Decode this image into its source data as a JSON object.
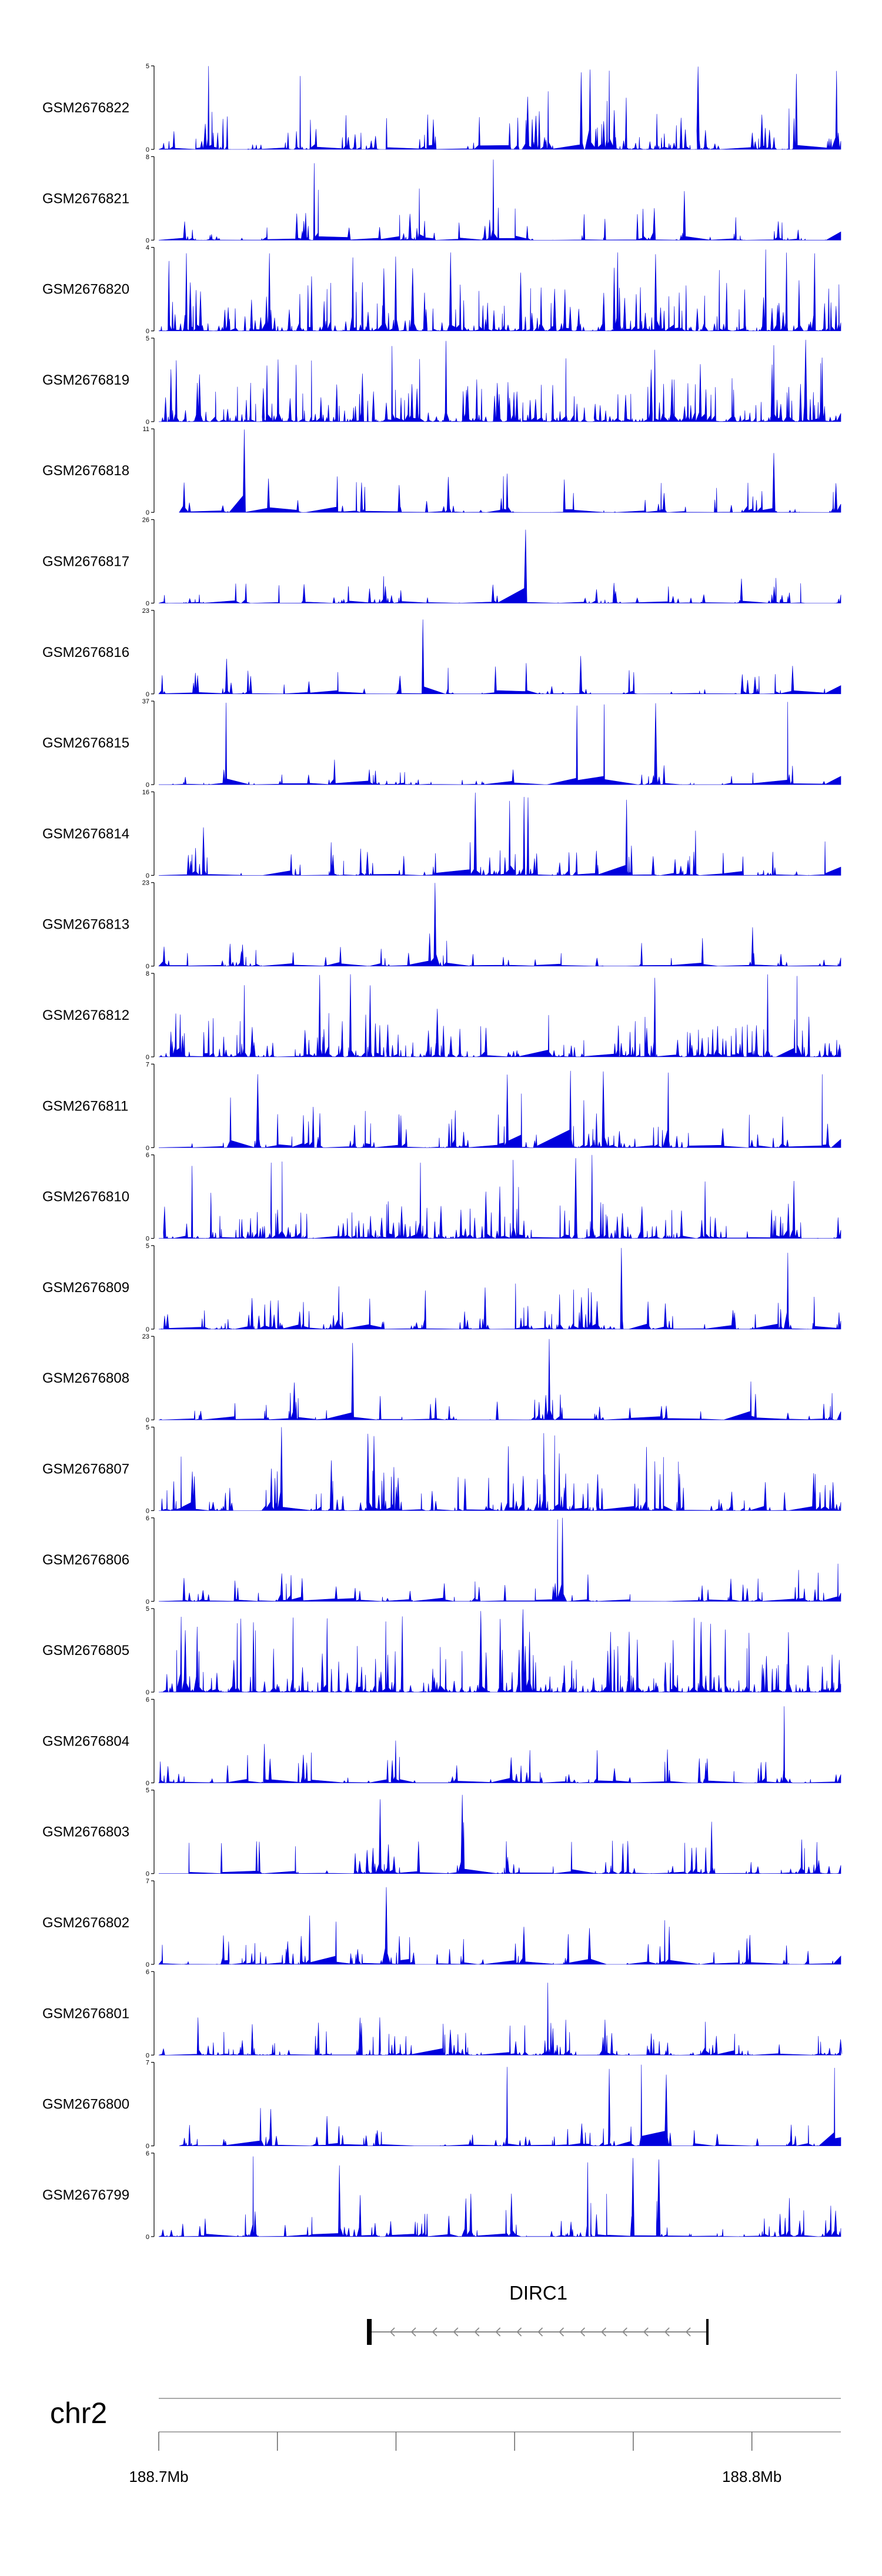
{
  "chart_data": {
    "type": "area",
    "colors": {
      "signal": "#0000dd",
      "axis": "#000000",
      "gene": "#888888",
      "chromosome": "#aaaaaa"
    },
    "region": {
      "chromosome": "chr2",
      "start_mb": 188.7,
      "end_mb": 188.815
    },
    "tracks": [
      {
        "name": "GSM2676822",
        "ymax": "5",
        "ymin": "0",
        "max": 5,
        "density": 0.9,
        "peak_scale": 0.55,
        "seed": 22
      },
      {
        "name": "GSM2676821",
        "ymax": "8",
        "ymin": "0",
        "max": 8,
        "density": 0.7,
        "peak_scale": 0.5,
        "seed": 21
      },
      {
        "name": "GSM2676820",
        "ymax": "4",
        "ymin": "0",
        "max": 4,
        "density": 1.0,
        "peak_scale": 0.75,
        "seed": 20
      },
      {
        "name": "GSM2676819",
        "ymax": "5",
        "ymin": "0",
        "max": 5,
        "density": 1.0,
        "peak_scale": 0.6,
        "seed": 19
      },
      {
        "name": "GSM2676818",
        "ymax": "11",
        "ymin": "0",
        "max": 11,
        "density": 0.55,
        "peak_scale": 0.55,
        "seed": 18,
        "start_frac": 0.03
      },
      {
        "name": "GSM2676817",
        "ymax": "26",
        "ymin": "0",
        "max": 26,
        "density": 0.6,
        "peak_scale": 0.3,
        "seed": 17
      },
      {
        "name": "GSM2676816",
        "ymax": "23",
        "ymin": "0",
        "max": 23,
        "density": 0.6,
        "peak_scale": 0.35,
        "seed": 16
      },
      {
        "name": "GSM2676815",
        "ymax": "37",
        "ymin": "0",
        "max": 37,
        "density": 0.55,
        "peak_scale": 0.25,
        "seed": 15
      },
      {
        "name": "GSM2676814",
        "ymax": "16",
        "ymin": "0",
        "max": 16,
        "density": 0.7,
        "peak_scale": 0.45,
        "seed": 14
      },
      {
        "name": "GSM2676813",
        "ymax": "23",
        "ymin": "0",
        "max": 23,
        "density": 0.6,
        "peak_scale": 0.4,
        "seed": 13
      },
      {
        "name": "GSM2676812",
        "ymax": "8",
        "ymin": "0",
        "max": 8,
        "density": 0.95,
        "peak_scale": 0.5,
        "seed": 12
      },
      {
        "name": "GSM2676811",
        "ymax": "7",
        "ymin": "0",
        "max": 7,
        "density": 0.75,
        "peak_scale": 0.5,
        "seed": 11
      },
      {
        "name": "GSM2676810",
        "ymax": "6",
        "ymin": "0",
        "max": 6,
        "density": 0.9,
        "peak_scale": 0.55,
        "seed": 10
      },
      {
        "name": "GSM2676809",
        "ymax": "5",
        "ymin": "0",
        "max": 5,
        "density": 0.8,
        "peak_scale": 0.5,
        "seed": 9
      },
      {
        "name": "GSM2676808",
        "ymax": "23",
        "ymin": "0",
        "max": 23,
        "density": 0.65,
        "peak_scale": 0.4,
        "seed": 8
      },
      {
        "name": "GSM2676807",
        "ymax": "5",
        "ymin": "0",
        "max": 5,
        "density": 0.9,
        "peak_scale": 0.6,
        "seed": 7
      },
      {
        "name": "GSM2676806",
        "ymax": "6",
        "ymin": "0",
        "max": 6,
        "density": 0.6,
        "peak_scale": 0.35,
        "seed": 6
      },
      {
        "name": "GSM2676805",
        "ymax": "5",
        "ymin": "0",
        "max": 5,
        "density": 1.0,
        "peak_scale": 0.7,
        "seed": 5
      },
      {
        "name": "GSM2676804",
        "ymax": "6",
        "ymin": "0",
        "max": 6,
        "density": 0.65,
        "peak_scale": 0.4,
        "seed": 4
      },
      {
        "name": "GSM2676803",
        "ymax": "5",
        "ymin": "0",
        "max": 5,
        "density": 0.75,
        "peak_scale": 0.5,
        "seed": 3
      },
      {
        "name": "GSM2676802",
        "ymax": "7",
        "ymin": "0",
        "max": 7,
        "density": 0.7,
        "peak_scale": 0.45,
        "seed": 2
      },
      {
        "name": "GSM2676801",
        "ymax": "6",
        "ymin": "0",
        "max": 6,
        "density": 0.9,
        "peak_scale": 0.35,
        "seed": 1
      },
      {
        "name": "GSM2676800",
        "ymax": "7",
        "ymin": "0",
        "max": 7,
        "density": 0.7,
        "peak_scale": 0.35,
        "seed": 100,
        "start_frac": 0.03
      },
      {
        "name": "GSM2676799",
        "ymax": "6",
        "ymin": "0",
        "max": 6,
        "density": 0.75,
        "peak_scale": 0.4,
        "seed": 99
      }
    ],
    "gene": {
      "name": "DIRC1",
      "start_mb": 188.7355,
      "end_mb": 188.7925,
      "strand": "-"
    },
    "chromosome": {
      "label": "chr2"
    },
    "axis": {
      "ticks_mb": [
        188.7,
        188.72,
        188.74,
        188.76,
        188.78,
        188.8
      ],
      "labels": [
        {
          "mb": 188.7,
          "text": "188.7Mb"
        },
        {
          "mb": 188.8,
          "text": "188.8Mb"
        }
      ]
    }
  }
}
